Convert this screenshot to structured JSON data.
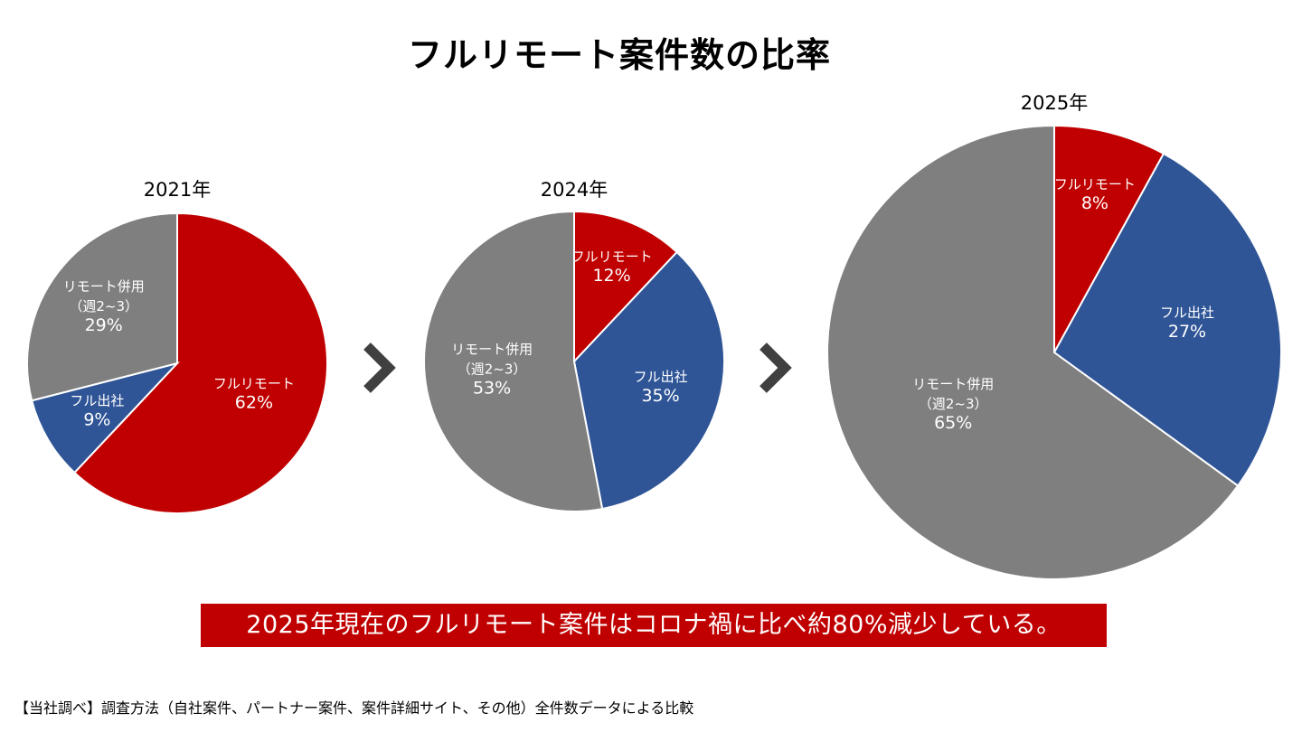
{
  "title": "フルリモート案件数の比率",
  "colors": {
    "full_remote": "#c00000",
    "full_office": "#2f5597",
    "hybrid": "#7f7f7f",
    "arrow": "#404040",
    "banner_bg": "#c00000"
  },
  "chart_data": [
    {
      "type": "pie",
      "title": "2021年",
      "start": "12 o'clock, clockwise",
      "slices": [
        {
          "key": "full_remote",
          "label": "フルリモート",
          "sublabel": "",
          "value": 62,
          "display": "62%"
        },
        {
          "key": "full_office",
          "label": "フル出社",
          "sublabel": "",
          "value": 9,
          "display": "9%"
        },
        {
          "key": "hybrid",
          "label": "リモート併用",
          "sublabel": "（週2~3）",
          "value": 29,
          "display": "29%"
        }
      ]
    },
    {
      "type": "pie",
      "title": "2024年",
      "start": "12 o'clock, clockwise",
      "slices": [
        {
          "key": "full_remote",
          "label": "フルリモート",
          "sublabel": "",
          "value": 12,
          "display": "12%"
        },
        {
          "key": "full_office",
          "label": "フル出社",
          "sublabel": "",
          "value": 35,
          "display": "35%"
        },
        {
          "key": "hybrid",
          "label": "リモート併用",
          "sublabel": "（週2~3）",
          "value": 53,
          "display": "53%"
        }
      ]
    },
    {
      "type": "pie",
      "title": "2025年",
      "start": "12 o'clock, clockwise",
      "slices": [
        {
          "key": "full_remote",
          "label": "フルリモート",
          "sublabel": "",
          "value": 8,
          "display": "8%"
        },
        {
          "key": "full_office",
          "label": "フル出社",
          "sublabel": "",
          "value": 27,
          "display": "27%"
        },
        {
          "key": "hybrid",
          "label": "リモート併用",
          "sublabel": "（週2~3）",
          "value": 65,
          "display": "65%"
        }
      ]
    }
  ],
  "arrows": [
    "chevron-right",
    "chevron-right"
  ],
  "banner": "2025年現在のフルリモート案件はコロナ禍に比べ約80%減少している。",
  "footnote": "【当社調べ】調査方法（自社案件、パートナー案件、案件詳細サイト、その他）全件数データによる比較"
}
